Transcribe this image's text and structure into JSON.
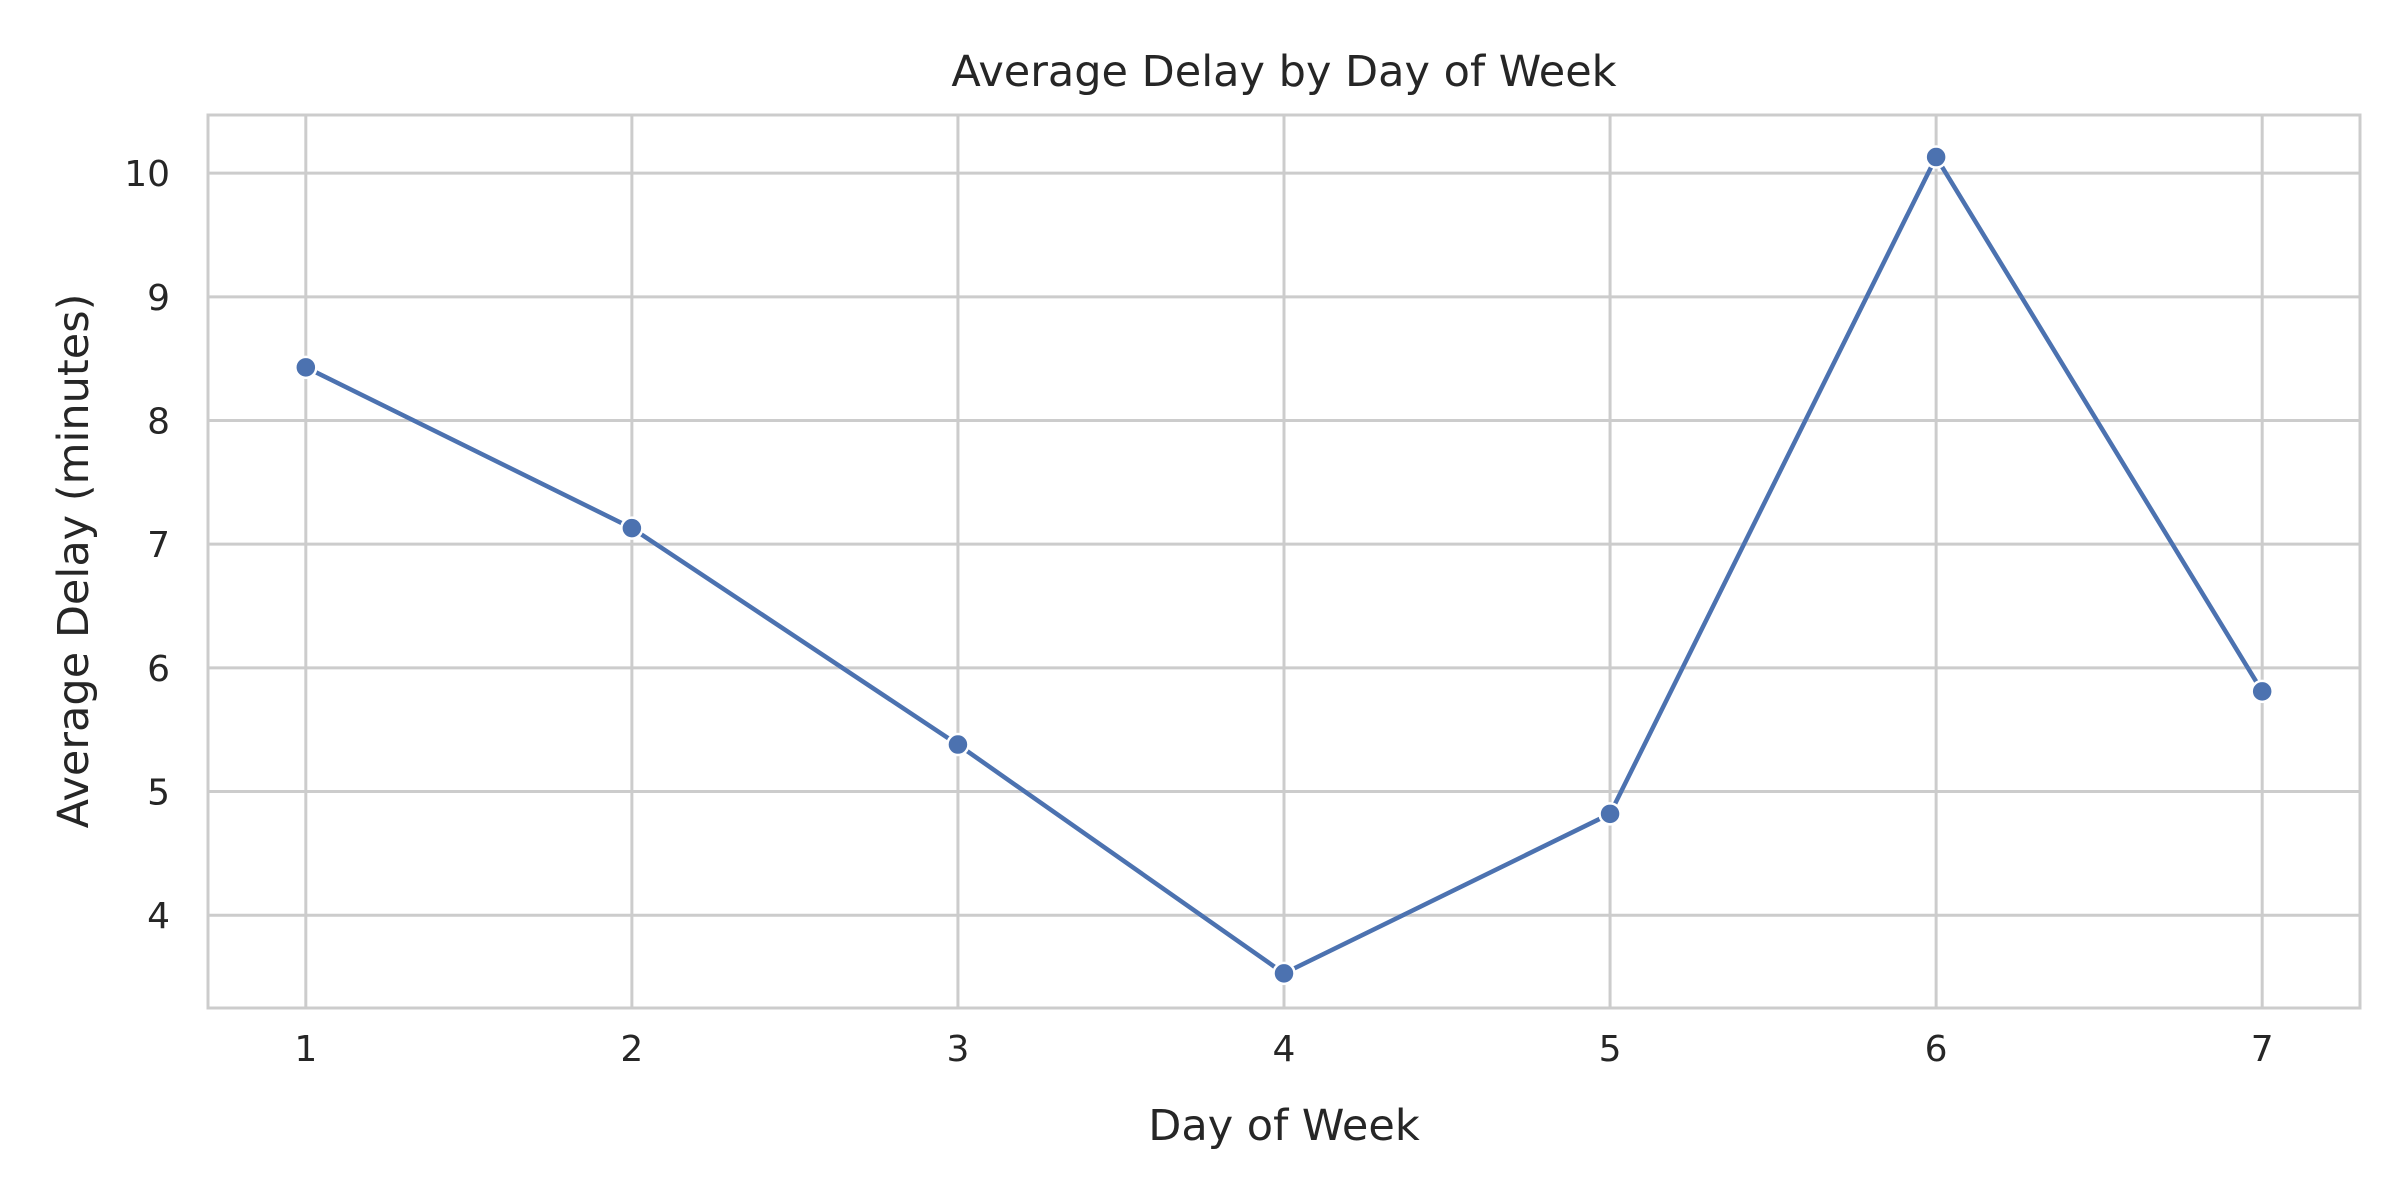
{
  "chart_data": {
    "type": "line",
    "title": "Average Delay by Day of Week",
    "xlabel": "Day of Week",
    "ylabel": "Average Delay (minutes)",
    "x": [
      1,
      2,
      3,
      4,
      5,
      6,
      7
    ],
    "series": [
      {
        "values": [
          8.43,
          7.13,
          5.38,
          3.53,
          4.82,
          10.13,
          5.81
        ]
      }
    ],
    "x_ticks": [
      "1",
      "2",
      "3",
      "4",
      "5",
      "6",
      "7"
    ],
    "y_ticks": [
      "4",
      "5",
      "6",
      "7",
      "8",
      "9",
      "10"
    ],
    "xlim": [
      0.7,
      7.3
    ],
    "ylim": [
      3.25,
      10.47
    ],
    "grid": true,
    "legend": "none",
    "colors": {
      "line": "#4c72b0",
      "grid": "#cccccc",
      "frame": "#cccccc",
      "text": "#262626"
    }
  }
}
